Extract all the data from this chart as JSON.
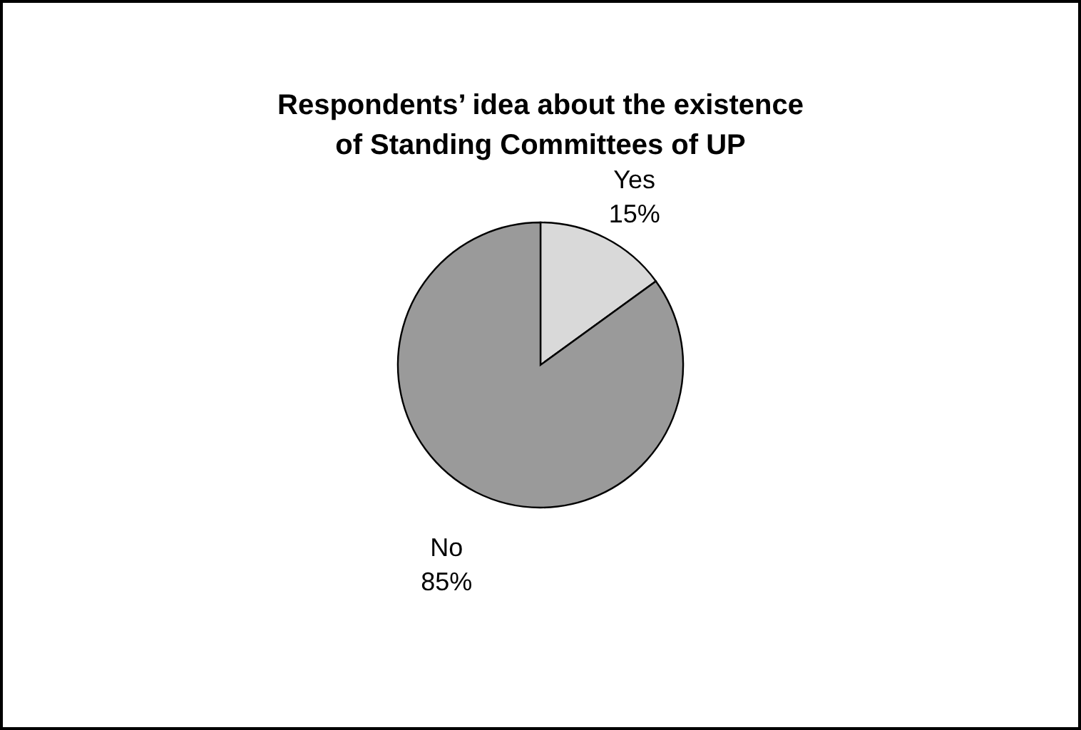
{
  "chart_data": {
    "type": "pie",
    "title": "Respondents’ idea about the existence of Standing Committees of UP",
    "categories": [
      "Yes",
      "No"
    ],
    "values": [
      15,
      85
    ],
    "colors": [
      "#d9d9d9",
      "#9a9a9a"
    ],
    "value_labels": [
      "15%",
      "85%"
    ]
  }
}
